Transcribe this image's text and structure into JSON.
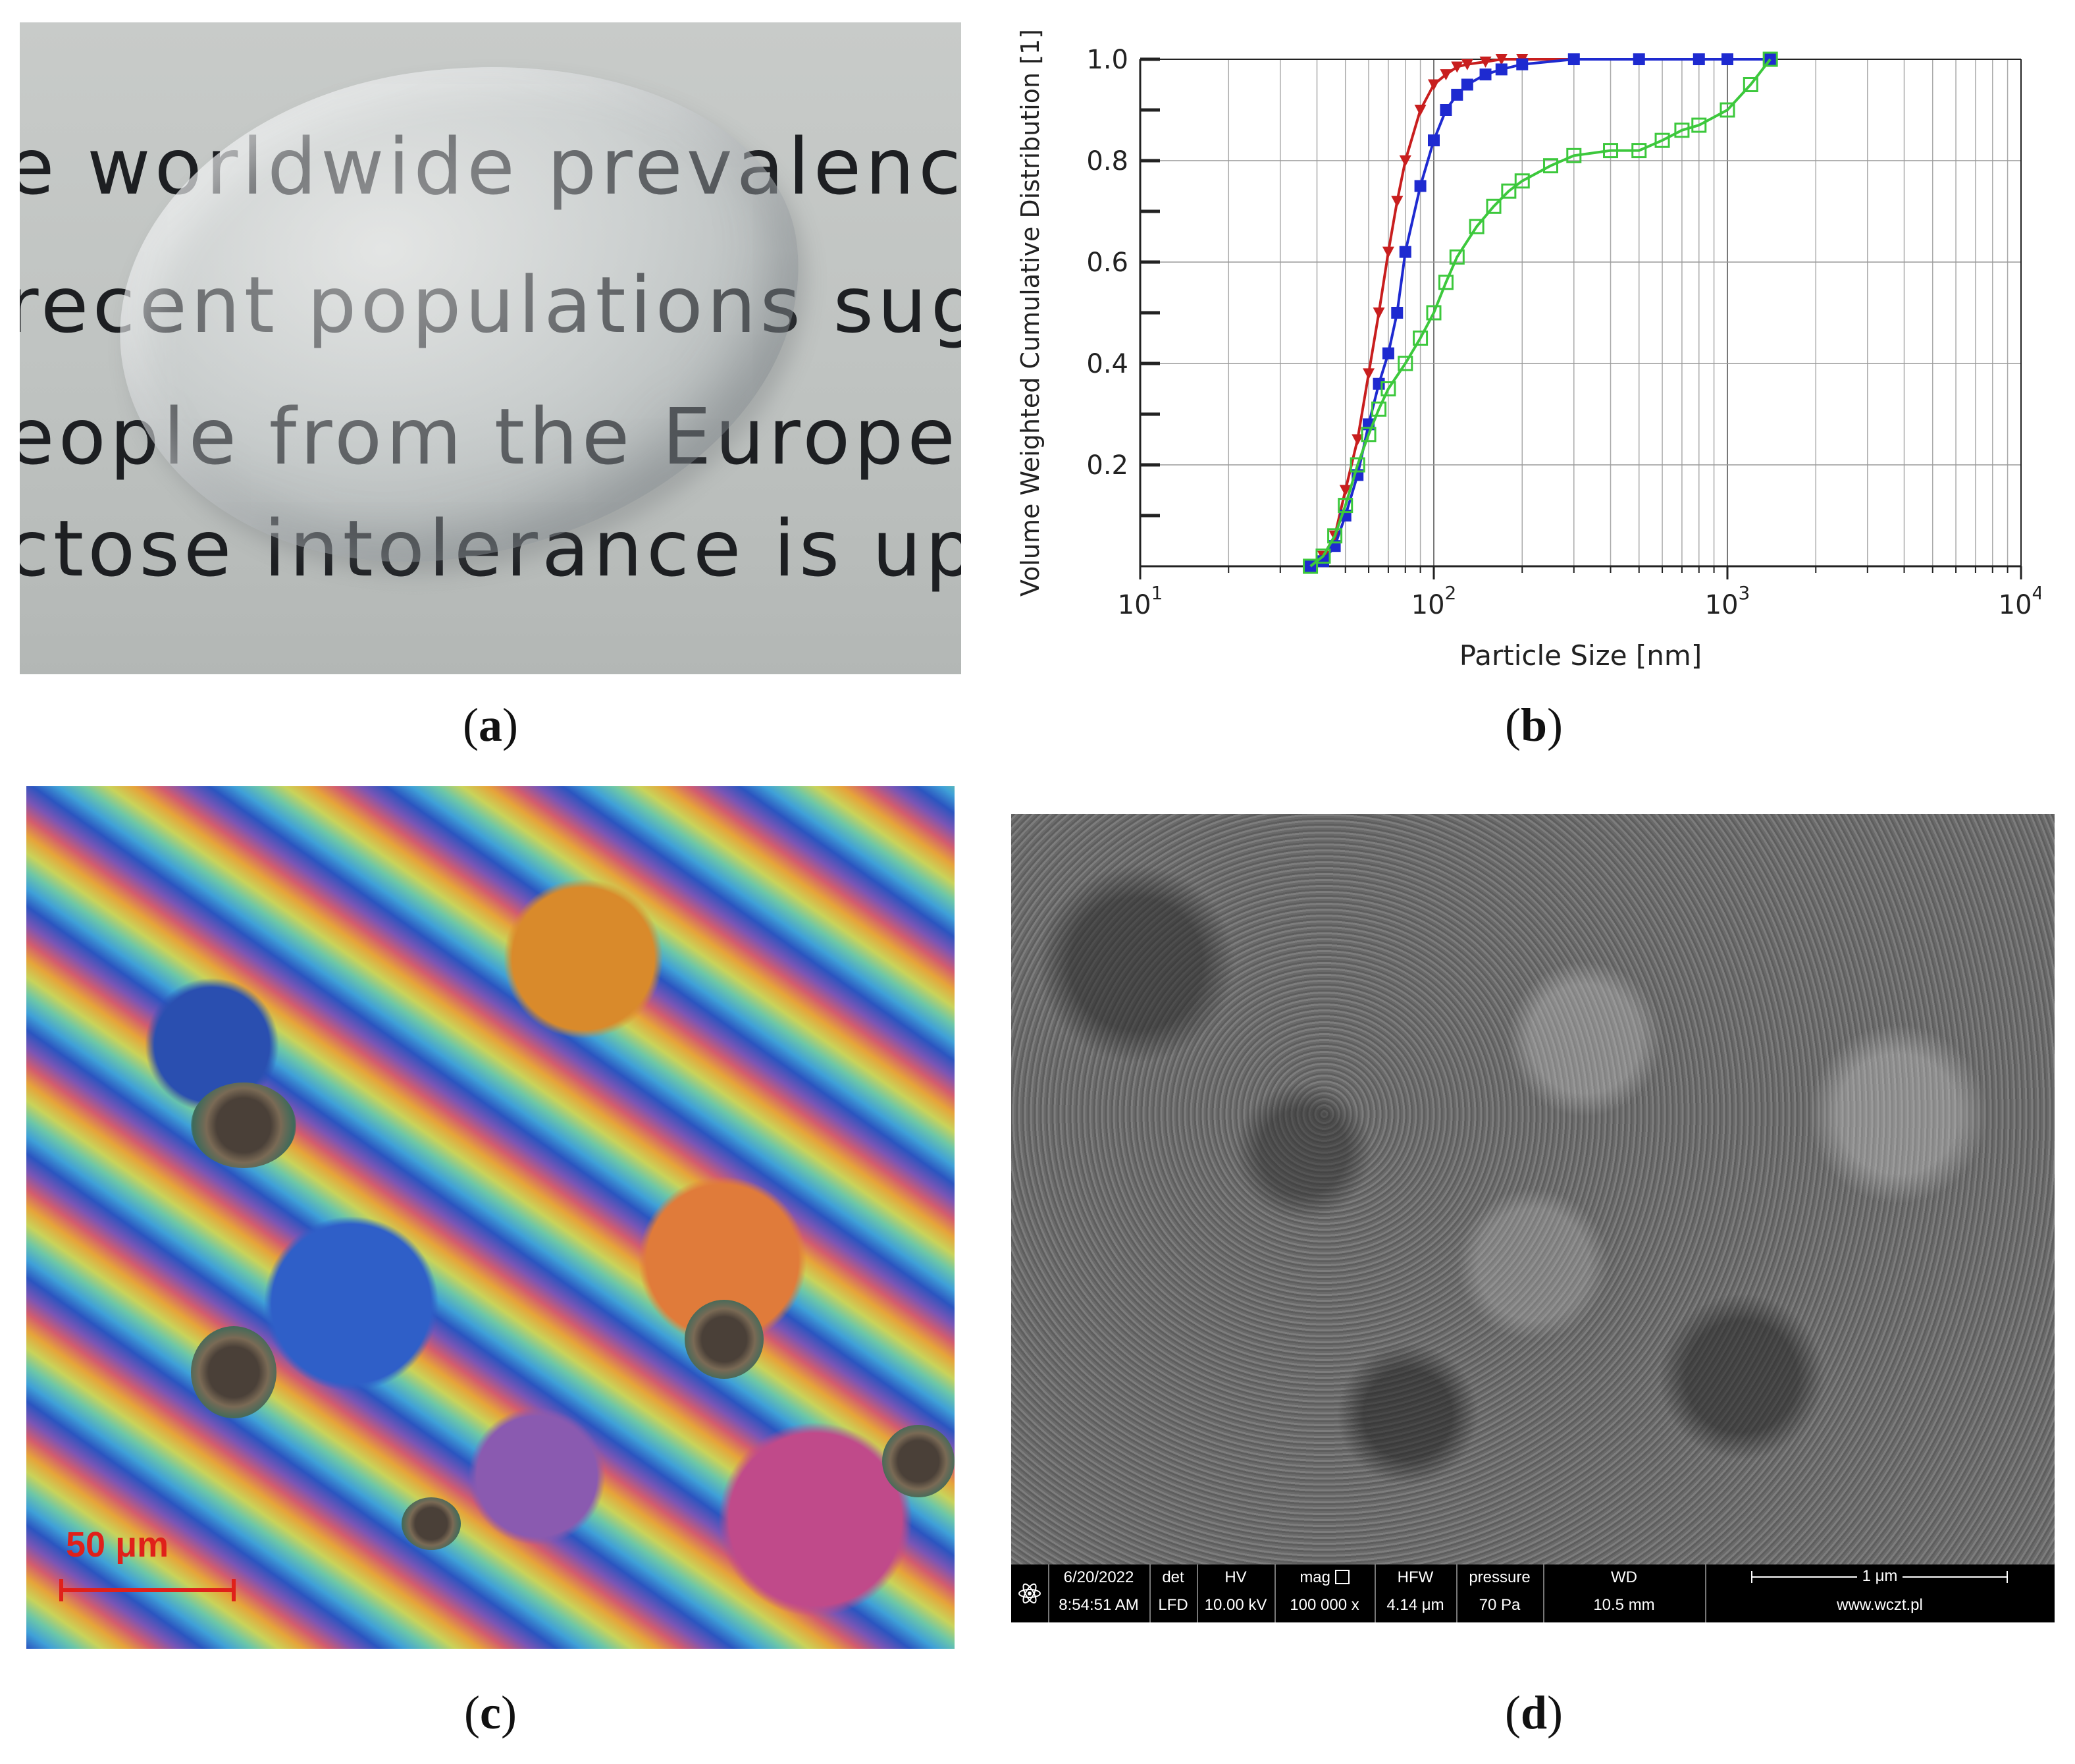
{
  "captions": {
    "a": "a",
    "b": "b",
    "c": "c",
    "d": "d"
  },
  "panel_a": {
    "lines": [
      "e worldwide prevalence",
      "recent populations sugg",
      "eople from the Europe",
      "ctose intolerance is up"
    ]
  },
  "panel_c": {
    "scale_label": "50 μm"
  },
  "panel_d": {
    "date": "6/20/2022",
    "time": "8:54:51 AM",
    "det_h": "det",
    "det_v": "LFD",
    "hv_h": "HV",
    "hv_v": "10.00 kV",
    "mag_h": "mag",
    "mag_v": "100 000 x",
    "hfw_h": "HFW",
    "hfw_v": "4.14 μm",
    "pressure_h": "pressure",
    "pressure_v": "70 Pa",
    "wd_h": "WD",
    "wd_v": "10.5 mm",
    "scale": "1 μm",
    "website": "www.wczt.pl"
  },
  "chart_data": {
    "type": "line",
    "xlabel": "Particle Size [nm]",
    "ylabel": "Volume Weighted Cumulative Distribution [1]",
    "xscale": "log",
    "xlim": [
      10,
      10000
    ],
    "ylim": [
      0,
      1.0
    ],
    "x_tick_labels": [
      "10",
      "10",
      "10",
      "10"
    ],
    "x_tick_exponents": [
      "1",
      "2",
      "3",
      "4"
    ],
    "y_tick_labels": [
      "0.2",
      "0.4",
      "0.6",
      "0.8",
      "1.0"
    ],
    "y_ticks": [
      0.2,
      0.4,
      0.6,
      0.8,
      1.0
    ],
    "grid": true,
    "series": [
      {
        "color": "#c81e1e",
        "marker": "triangle",
        "x": [
          38,
          42,
          46,
          50,
          55,
          60,
          65,
          70,
          75,
          80,
          90,
          100,
          110,
          120,
          130,
          150,
          170,
          200,
          300,
          500,
          800,
          1000,
          1400
        ],
        "y": [
          0.0,
          0.02,
          0.06,
          0.15,
          0.25,
          0.38,
          0.5,
          0.62,
          0.72,
          0.8,
          0.9,
          0.95,
          0.97,
          0.985,
          0.99,
          0.995,
          1.0,
          1.0,
          1.0,
          1.0,
          1.0,
          1.0,
          1.0
        ]
      },
      {
        "color": "#1e2ad0",
        "marker": "square",
        "x": [
          38,
          42,
          46,
          50,
          55,
          60,
          65,
          70,
          75,
          80,
          90,
          100,
          110,
          120,
          130,
          150,
          170,
          200,
          300,
          500,
          800,
          1000,
          1400
        ],
        "y": [
          0.0,
          0.01,
          0.04,
          0.1,
          0.18,
          0.28,
          0.36,
          0.42,
          0.5,
          0.62,
          0.75,
          0.84,
          0.9,
          0.93,
          0.95,
          0.97,
          0.98,
          0.99,
          1.0,
          1.0,
          1.0,
          1.0,
          1.0
        ]
      },
      {
        "color": "#3cc83c",
        "marker": "open-square",
        "x": [
          38,
          42,
          46,
          50,
          55,
          60,
          65,
          70,
          80,
          90,
          100,
          110,
          120,
          140,
          160,
          180,
          200,
          250,
          300,
          400,
          500,
          600,
          700,
          800,
          1000,
          1200,
          1400
        ],
        "y": [
          0.0,
          0.02,
          0.06,
          0.12,
          0.2,
          0.26,
          0.31,
          0.35,
          0.4,
          0.45,
          0.5,
          0.56,
          0.61,
          0.67,
          0.71,
          0.74,
          0.76,
          0.79,
          0.81,
          0.82,
          0.82,
          0.84,
          0.86,
          0.87,
          0.9,
          0.95,
          1.0
        ]
      }
    ]
  }
}
